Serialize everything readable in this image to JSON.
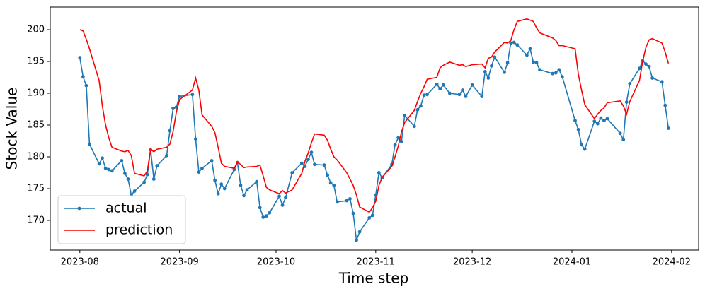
{
  "chart_data": {
    "type": "line",
    "xlabel": "Time step",
    "ylabel": "Stock Value",
    "x": [
      19570,
      19571,
      19572,
      19573,
      19576,
      19577,
      19578,
      19579,
      19580,
      19583,
      19584,
      19585,
      19586,
      19587,
      19590,
      19591,
      19592,
      19593,
      19594,
      19597,
      19598,
      19599,
      19600,
      19601,
      19605,
      19606,
      19607,
      19608,
      19611,
      19612,
      19613,
      19614,
      19615,
      19618,
      19619,
      19620,
      19621,
      19622,
      19625,
      19626,
      19627,
      19628,
      19629,
      19632,
      19633,
      19634,
      19636,
      19639,
      19640,
      19641,
      19642,
      19643,
      19646,
      19647,
      19648,
      19649,
      19650,
      19653,
      19654,
      19655,
      19656,
      19657,
      19660,
      19661,
      19662,
      19663,
      19664,
      19667,
      19668,
      19669,
      19670,
      19671,
      19674,
      19675,
      19676,
      19677,
      19678,
      19681,
      19682,
      19683,
      19685,
      19688,
      19689,
      19690,
      19692,
      19695,
      19696,
      19697,
      19698,
      19699,
      19702,
      19703,
      19704,
      19705,
      19706,
      19709,
      19710,
      19711,
      19712,
      19713,
      19717,
      19718,
      19719,
      19720,
      19724,
      19725,
      19726,
      19727,
      19730,
      19731,
      19732,
      19733,
      19734,
      19738,
      19739,
      19740,
      19741,
      19744,
      19745,
      19746,
      19747,
      19748,
      19751,
      19752,
      19753
    ],
    "series": [
      {
        "name": "actual",
        "color": "#1f77b4",
        "marker": true,
        "values": [
          195.6,
          192.6,
          191.2,
          182,
          178.9,
          179.8,
          178.2,
          178,
          177.8,
          179.4,
          177.4,
          176.5,
          174,
          174.6,
          176,
          177.2,
          181.1,
          176.5,
          178.6,
          180.2,
          184.1,
          187.6,
          187.8,
          189.5,
          189.8,
          182.8,
          177.6,
          178.2,
          179.4,
          176.3,
          174.2,
          175.7,
          175,
          178,
          179.1,
          175.5,
          173.9,
          174.8,
          176.1,
          172,
          170.5,
          170.7,
          171.2,
          173.8,
          172.4,
          173.6,
          177.5,
          179,
          178.5,
          179.6,
          180.7,
          178.8,
          178.7,
          177.1,
          175.9,
          175.5,
          172.9,
          173.1,
          173.4,
          171.1,
          166.9,
          168.2,
          170.4,
          170.8,
          174,
          177.5,
          176.7,
          178.8,
          181.9,
          183,
          182.4,
          186.5,
          184.8,
          187.4,
          188,
          189.7,
          189.8,
          191.4,
          190.7,
          191.3,
          190,
          189.8,
          190.5,
          189.5,
          191.3,
          189.5,
          193.4,
          192.4,
          194.3,
          195.7,
          193.3,
          194.8,
          197.9,
          198,
          197.6,
          196,
          197,
          194.9,
          194.8,
          193.7,
          193.1,
          193.2,
          193.7,
          192.6,
          185.7,
          184.3,
          181.9,
          181.2,
          185.6,
          185.2,
          186.1,
          185.7,
          186,
          183.7,
          182.7,
          188.6,
          191.5,
          193.9,
          195.1,
          194.6,
          194.2,
          192.4,
          191.8,
          188.1,
          184.5
        ]
      },
      {
        "name": "prediction",
        "color": "#ff0000",
        "marker": false,
        "values": [
          200,
          199.8,
          198.5,
          197,
          192,
          188,
          185,
          183,
          181.5,
          180.9,
          180.8,
          181,
          180.2,
          177.4,
          177,
          177.8,
          181.2,
          180.8,
          181.2,
          181.5,
          182,
          184,
          187,
          189,
          190.5,
          192.4,
          190.5,
          186.6,
          184.8,
          183.8,
          181.5,
          179,
          178.5,
          178.2,
          179.2,
          178.8,
          178.3,
          178.4,
          178.5,
          178.7,
          177,
          175.2,
          174.8,
          174.2,
          174.7,
          174.3,
          174.8,
          177.4,
          179.3,
          180.6,
          182.2,
          183.6,
          183.4,
          182.6,
          181.2,
          180,
          179.5,
          177.5,
          176.5,
          175.5,
          174,
          172.1,
          171.3,
          172,
          173,
          175.5,
          176.8,
          178.5,
          180,
          181.7,
          183.9,
          185.4,
          187.3,
          188.7,
          190,
          191,
          192.2,
          192.5,
          194,
          194.4,
          194.9,
          194.4,
          194.5,
          194.2,
          194.5,
          194.6,
          194,
          195.5,
          195.7,
          196.5,
          198,
          197.9,
          198.3,
          200,
          201.3,
          201.7,
          201.5,
          201.3,
          200.3,
          199.5,
          198.7,
          198.3,
          197.5,
          197.5,
          197,
          193,
          190.5,
          188.2,
          186,
          186.7,
          187.3,
          187.7,
          188.5,
          188.8,
          188,
          186.7,
          188.7,
          192,
          195,
          197.2,
          198.4,
          198.6,
          197.9,
          196.5,
          194.7
        ]
      }
    ],
    "xlim": [
      19560.8,
      19762.4
    ],
    "xticks": [
      {
        "value": 19570,
        "label": "2023-08"
      },
      {
        "value": 19601,
        "label": "2023-09"
      },
      {
        "value": 19631,
        "label": "2023-10"
      },
      {
        "value": 19662,
        "label": "2023-11"
      },
      {
        "value": 19692,
        "label": "2023-12"
      },
      {
        "value": 19723,
        "label": "2024-01"
      },
      {
        "value": 19754,
        "label": "2024-02"
      }
    ],
    "ylim": [
      165.33,
      203.56
    ],
    "yticks": [
      170,
      175,
      180,
      185,
      190,
      195,
      200
    ],
    "grid": false,
    "legend": "lower left"
  }
}
